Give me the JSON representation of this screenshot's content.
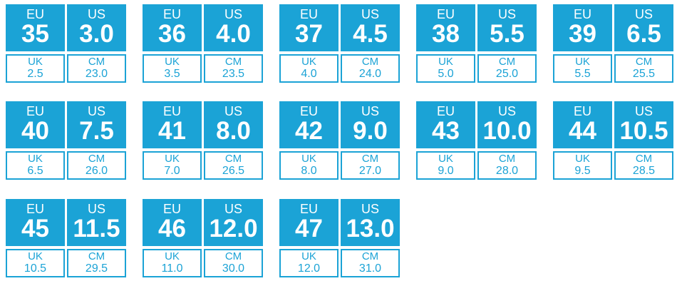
{
  "labels": {
    "eu": "EU",
    "us": "US",
    "uk": "UK",
    "cm": "CM"
  },
  "sizes": [
    {
      "eu": "35",
      "us": "3.0",
      "uk": "2.5",
      "cm": "23.0"
    },
    {
      "eu": "36",
      "us": "4.0",
      "uk": "3.5",
      "cm": "23.5"
    },
    {
      "eu": "37",
      "us": "4.5",
      "uk": "4.0",
      "cm": "24.0"
    },
    {
      "eu": "38",
      "us": "5.5",
      "uk": "5.0",
      "cm": "25.0"
    },
    {
      "eu": "39",
      "us": "6.5",
      "uk": "5.5",
      "cm": "25.5"
    },
    {
      "eu": "40",
      "us": "7.5",
      "uk": "6.5",
      "cm": "26.0"
    },
    {
      "eu": "41",
      "us": "8.0",
      "uk": "7.0",
      "cm": "26.5"
    },
    {
      "eu": "42",
      "us": "9.0",
      "uk": "8.0",
      "cm": "27.0"
    },
    {
      "eu": "43",
      "us": "10.0",
      "uk": "9.0",
      "cm": "28.0"
    },
    {
      "eu": "44",
      "us": "10.5",
      "uk": "9.5",
      "cm": "28.5"
    },
    {
      "eu": "45",
      "us": "11.5",
      "uk": "10.5",
      "cm": "29.5"
    },
    {
      "eu": "46",
      "us": "12.0",
      "uk": "11.0",
      "cm": "30.0"
    },
    {
      "eu": "47",
      "us": "13.0",
      "uk": "12.0",
      "cm": "31.0"
    }
  ]
}
